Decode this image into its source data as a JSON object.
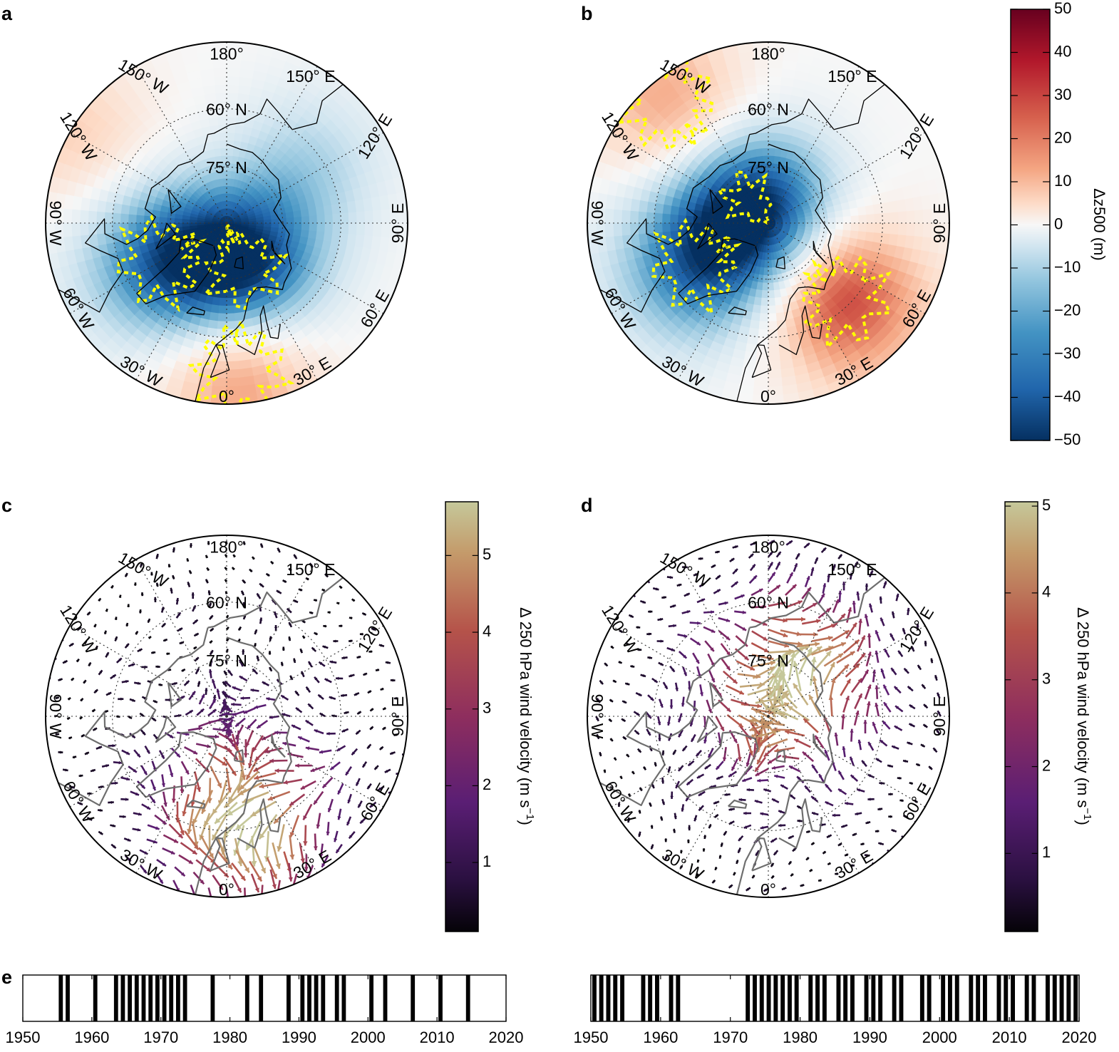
{
  "panels": [
    {
      "letter": "a",
      "type": "height-anomaly"
    },
    {
      "letter": "b",
      "type": "height-anomaly"
    },
    {
      "letter": "c",
      "type": "wind-anomaly"
    },
    {
      "letter": "d",
      "type": "wind-anomaly"
    }
  ],
  "timeline_letter": "e",
  "map_labels": {
    "lat_60": "60° N",
    "lat_75": "75° N",
    "lon_180": "180°",
    "lon_150e": "150° E",
    "lon_120e": "120° E",
    "lon_90e": "90° E",
    "lon_60e": "60° E",
    "lon_30e": "30° E",
    "lon_0": "0°",
    "lon_30w": "30° W",
    "lon_60w": "60° W",
    "lon_90w": "90° W",
    "lon_120w": "120° W",
    "lon_150w": "150° W"
  },
  "colors": {
    "negative": "#0a3d7a",
    "positive": "#8b0a1e",
    "neutral": "#f7f7f7",
    "significance_contour": "#ffff00",
    "coastline_top": "#000000",
    "coastline_bottom": "#6e6e6e"
  },
  "chart_data": [
    {
      "type": "heatmap",
      "panel": "a",
      "projection": "north polar stereographic",
      "anomaly_centers_m": [
        {
          "lon_deg": 20,
          "lat_deg": 78,
          "value": -50
        },
        {
          "lon_deg": -60,
          "lat_deg": 70,
          "value": -35
        },
        {
          "lon_deg": 125,
          "lat_deg": 65,
          "value": -15
        },
        {
          "lon_deg": 5,
          "lat_deg": 52,
          "value": 25
        },
        {
          "lon_deg": -120,
          "lat_deg": 45,
          "value": 12
        }
      ]
    },
    {
      "type": "heatmap",
      "panel": "b",
      "projection": "north polar stereographic",
      "anomaly_centers_m": [
        {
          "lon_deg": -140,
          "lat_deg": 85,
          "value": -50
        },
        {
          "lon_deg": -60,
          "lat_deg": 68,
          "value": -35
        },
        {
          "lon_deg": 45,
          "lat_deg": 62,
          "value": 35
        },
        {
          "lon_deg": -140,
          "lat_deg": 50,
          "value": 20
        }
      ]
    },
    {
      "type": "heatmap",
      "panel": "colorbar-z500",
      "label": "Δz500 (m)",
      "ticks": [
        50,
        40,
        30,
        20,
        10,
        0,
        -10,
        -20,
        -30,
        -40,
        -50
      ],
      "range": [
        -50,
        50
      ],
      "colormap": "RdBu_r"
    },
    {
      "type": "scatter",
      "panel": "c",
      "projection": "north polar stereographic",
      "max_magnitude_region": {
        "lon_deg": 10,
        "lat_deg": 65,
        "value": 5.5
      }
    },
    {
      "type": "scatter",
      "panel": "d",
      "projection": "north polar stereographic",
      "max_magnitude_region": {
        "lon_deg": 150,
        "lat_deg": 80,
        "value": 5
      }
    },
    {
      "type": "heatmap",
      "panel": "colorbar-wind-c",
      "label": "Δ 250 hPa wind velocity (m s",
      "label_sup": "−1",
      "label_end": ")",
      "ticks": [
        5,
        4,
        3,
        2,
        1
      ],
      "range": [
        0.1,
        5.7
      ],
      "colormap": "twilight-purple-to-tan"
    },
    {
      "type": "heatmap",
      "panel": "colorbar-wind-d",
      "label": "Δ 250 hPa wind velocity (m s",
      "label_sup": "−1",
      "label_end": ")",
      "ticks": [
        5,
        4,
        3,
        2,
        1
      ],
      "range": [
        0.1,
        5.05
      ],
      "colormap": "twilight-purple-to-tan"
    },
    {
      "type": "bar",
      "panel": "e-left",
      "xlim": [
        1950,
        2020
      ],
      "xticks": [
        1950,
        1960,
        1970,
        1980,
        1990,
        2000,
        2010,
        2020
      ],
      "event_years": [
        1955,
        1956,
        1960,
        1963,
        1964,
        1965,
        1966,
        1967,
        1968,
        1969,
        1970,
        1971,
        1972,
        1973,
        1977,
        1982,
        1984,
        1988,
        1990,
        1991,
        1992,
        1993,
        1995,
        1996,
        2000,
        2002,
        2006,
        2010,
        2014
      ]
    },
    {
      "type": "bar",
      "panel": "e-right",
      "xlim": [
        1950,
        2020
      ],
      "xticks": [
        1950,
        1960,
        1970,
        1980,
        1990,
        2000,
        2010,
        2020
      ],
      "event_years": [
        1950,
        1951,
        1952,
        1953,
        1954,
        1957,
        1958,
        1959,
        1961,
        1962,
        1972,
        1973,
        1974,
        1975,
        1976,
        1977,
        1978,
        1979,
        1981,
        1982,
        1983,
        1985,
        1986,
        1987,
        1989,
        1990,
        1991,
        1993,
        1994,
        1997,
        1998,
        2000,
        2001,
        2002,
        2004,
        2005,
        2006,
        2008,
        2009,
        2010,
        2012,
        2013,
        2015,
        2016,
        2017,
        2018,
        2019
      ]
    }
  ]
}
